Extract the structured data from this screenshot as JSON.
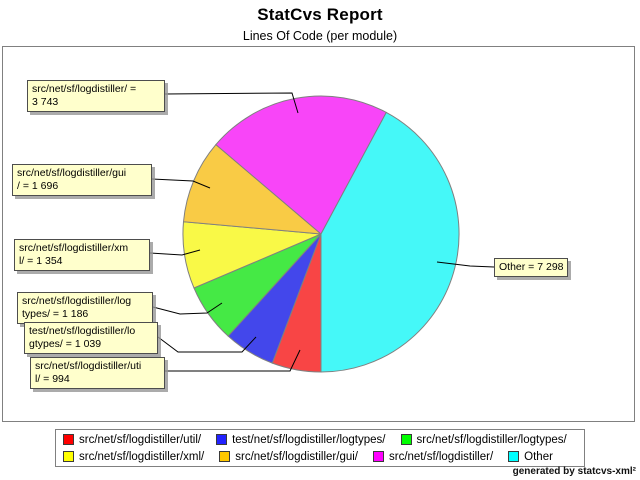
{
  "header": {
    "title": "StatCvs Report",
    "subtitle": "Lines Of Code (per module)"
  },
  "chart_data": {
    "type": "pie",
    "title": "StatCvs Report",
    "subtitle": "Lines Of Code (per module)",
    "total": 17310,
    "start_angle_from_north_cw_deg": 180,
    "direction": "clockwise",
    "stroke": "#808080",
    "legend_position": "bottom",
    "slices": [
      {
        "label": "src/net/sf/logdistiller/util/",
        "value": 994,
        "legend_color": "#FF0000",
        "fill": "#F84545"
      },
      {
        "label": "test/net/sf/logdistiller/logtypes/",
        "value": 1039,
        "legend_color": "#2222FF",
        "fill": "#4347EB"
      },
      {
        "label": "src/net/sf/logdistiller/logtypes/",
        "value": 1186,
        "legend_color": "#00FF00",
        "fill": "#45E945"
      },
      {
        "label": "src/net/sf/logdistiller/xml/",
        "value": 1354,
        "legend_color": "#FFFF00",
        "fill": "#F9F947"
      },
      {
        "label": "src/net/sf/logdistiller/gui/",
        "value": 1696,
        "legend_color": "#FFC800",
        "fill": "#F9CB45"
      },
      {
        "label": "src/net/sf/logdistiller/",
        "value": 3743,
        "legend_color": "#FF00FF",
        "fill": "#F845F8"
      },
      {
        "label": "Other",
        "value": 7298,
        "legend_color": "#00FFFF",
        "fill": "#45F8F8"
      }
    ]
  },
  "callouts": [
    {
      "lines": [
        "src/net/sf/logdistiller/ =",
        "3 743"
      ]
    },
    {
      "lines": [
        "src/net/sf/logdistiller/gui",
        "/ = 1 696"
      ]
    },
    {
      "lines": [
        "src/net/sf/logdistiller/xm",
        "l/ = 1 354"
      ]
    },
    {
      "lines": [
        "src/net/sf/logdistiller/log",
        "types/ = 1 186"
      ]
    },
    {
      "lines": [
        "test/net/sf/logdistiller/lo",
        "gtypes/ = 1 039"
      ]
    },
    {
      "lines": [
        "src/net/sf/logdistiller/uti",
        "l/ = 994"
      ]
    },
    {
      "lines": [
        "Other = 7 298"
      ]
    }
  ],
  "legend": {
    "rows": [
      [
        0,
        1,
        2
      ],
      [
        3,
        4,
        5,
        6
      ]
    ]
  },
  "footer": {
    "credit": "generated by statcvs-xml²"
  }
}
